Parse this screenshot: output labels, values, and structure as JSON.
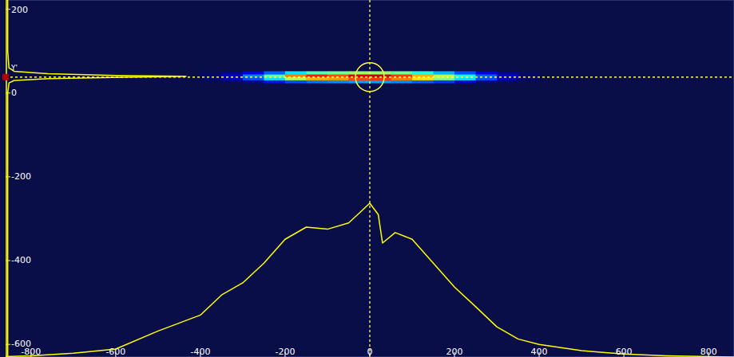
{
  "chart_data": {
    "type": "heatmap",
    "xlim": [
      -860,
      860
    ],
    "ylim": [
      -630,
      222
    ],
    "xticks": [
      -800,
      -600,
      -400,
      -200,
      0,
      200,
      400,
      600,
      800
    ],
    "yticks": [
      200,
      0,
      -200,
      -400,
      -600
    ],
    "grid": false,
    "crosshair": {
      "x": 0,
      "y": 38
    },
    "heatmap": {
      "x_edges": [
        -400,
        -350,
        -300,
        -250,
        -200,
        -150,
        -100,
        -50,
        0,
        50,
        100,
        150,
        200,
        250,
        300,
        350,
        400
      ],
      "y_edges": [
        24,
        31,
        38,
        45,
        52
      ],
      "zlim": [
        0,
        100
      ],
      "cells": [
        [
          2,
          4,
          8,
          14,
          20,
          24,
          26,
          28,
          28,
          26,
          22,
          18,
          12,
          7,
          4,
          2
        ],
        [
          5,
          10,
          20,
          35,
          55,
          70,
          72,
          80,
          82,
          75,
          65,
          50,
          35,
          20,
          10,
          5
        ],
        [
          6,
          12,
          25,
          45,
          75,
          85,
          80,
          90,
          92,
          82,
          70,
          55,
          38,
          22,
          12,
          5
        ],
        [
          3,
          6,
          12,
          22,
          35,
          45,
          48,
          52,
          52,
          48,
          40,
          30,
          20,
          12,
          6,
          3
        ]
      ]
    },
    "series": [
      {
        "name": "Y'",
        "color": "#ffff00",
        "x": [
          -855,
          -855,
          -852,
          -840,
          -760,
          -600,
          -434,
          -560,
          -760,
          -840,
          -852,
          -855,
          -855,
          -855
        ],
        "values": [
          222,
          100,
          60,
          52,
          46,
          42,
          40,
          38,
          34,
          30,
          24,
          0,
          -300,
          -630
        ]
      },
      {
        "color": "#ffff00",
        "x": [
          -860,
          -800,
          -700,
          -600,
          -500,
          -400,
          -350,
          -300,
          -250,
          -200,
          -150,
          -100,
          -50,
          -20,
          0,
          20,
          30,
          60,
          100,
          150,
          200,
          250,
          300,
          350,
          400,
          500,
          600,
          700,
          800,
          860
        ],
        "values": [
          -629,
          -627,
          -621,
          -611,
          -568,
          -530,
          -482,
          -453,
          -406,
          -349,
          -320,
          -325,
          -310,
          -282,
          -263,
          -290,
          -358,
          -333,
          -349,
          -406,
          -463,
          -510,
          -558,
          -587,
          -600,
          -615,
          -623,
          -627,
          -629,
          -630
        ]
      }
    ]
  }
}
